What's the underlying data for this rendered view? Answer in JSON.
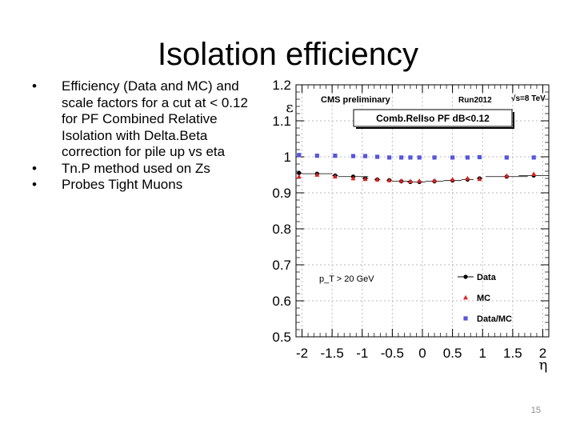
{
  "slide": {
    "title": "Isolation efficiency",
    "bullets": [
      "Efficiency (Data and MC) and scale factors for a cut at < 0.12 for PF Combined Relative Isolation with Delta.Beta correction for pile up vs eta",
      "Tn.P method used on Zs",
      "Probes Tight Muons"
    ],
    "bullet_glyph": "•",
    "page_number": "15"
  },
  "chart_data": {
    "type": "scatter",
    "header_left": "CMS preliminary",
    "header_mid": "Run2012",
    "header_right": "√s=8 TeV",
    "box_label": "Comb.RelIso PF dB<0.12",
    "pt_label": "p_T > 20 GeV",
    "ylabel": "ε",
    "xlabel": "η",
    "xlim": [
      -2.1,
      2.1
    ],
    "ylim": [
      0.5,
      1.2
    ],
    "x_ticks": [
      -2,
      -1.5,
      -1,
      -0.5,
      0,
      0.5,
      1,
      1.5,
      2
    ],
    "x_tick_labels": [
      "-2",
      "-1.5",
      "-1",
      "-0.5",
      "0",
      "0.5",
      "1",
      "1.5",
      "2"
    ],
    "y_ticks": [
      0.5,
      0.6,
      0.7,
      0.8,
      0.9,
      1.0,
      1.1,
      1.2
    ],
    "y_tick_labels": [
      "0.5",
      "0.6",
      "0.7",
      "0.8",
      "0.9",
      "1",
      "1.1",
      "1.2"
    ],
    "series": [
      {
        "name": "Data",
        "marker": "circle",
        "color": "#000000",
        "x": [
          -2.05,
          -1.75,
          -1.45,
          -1.15,
          -0.95,
          -0.75,
          -0.55,
          -0.35,
          -0.2,
          -0.05,
          0.2,
          0.5,
          0.75,
          0.95,
          1.4,
          1.85
        ],
        "y": [
          0.955,
          0.953,
          0.948,
          0.945,
          0.94,
          0.937,
          0.935,
          0.932,
          0.93,
          0.93,
          0.932,
          0.934,
          0.937,
          0.94,
          0.945,
          0.948
        ],
        "xerr": [
          0.05,
          0.25,
          0.05,
          0.25,
          0.05,
          0.05,
          0.05,
          0.15,
          0.05,
          0.1,
          0.15,
          0.15,
          0.1,
          0.05,
          0.35,
          0.25
        ]
      },
      {
        "name": "MC",
        "marker": "triangle",
        "color": "#dd2222",
        "x": [
          -2.05,
          -1.75,
          -1.45,
          -1.15,
          -0.95,
          -0.75,
          -0.55,
          -0.35,
          -0.2,
          -0.05,
          0.2,
          0.5,
          0.75,
          0.95,
          1.4,
          1.85
        ],
        "y": [
          0.945,
          0.95,
          0.945,
          0.94,
          0.938,
          0.937,
          0.935,
          0.933,
          0.932,
          0.933,
          0.934,
          0.937,
          0.94,
          0.938,
          0.947,
          0.952
        ],
        "xerr": [
          0.05,
          0.25,
          0.05,
          0.25,
          0.05,
          0.05,
          0.05,
          0.15,
          0.05,
          0.1,
          0.15,
          0.15,
          0.1,
          0.05,
          0.35,
          0.25
        ]
      },
      {
        "name": "Data/MC",
        "marker": "square",
        "color": "#5555dd",
        "x": [
          -2.05,
          -1.75,
          -1.45,
          -1.15,
          -0.95,
          -0.75,
          -0.55,
          -0.35,
          -0.2,
          -0.05,
          0.2,
          0.5,
          0.75,
          0.95,
          1.4,
          1.85
        ],
        "y": [
          1.005,
          1.003,
          1.003,
          1.002,
          1.002,
          1.0,
          0.998,
          0.998,
          0.998,
          0.998,
          0.998,
          0.998,
          0.998,
          0.999,
          0.998,
          0.998
        ],
        "xerr": [
          0.05,
          0.25,
          0.05,
          0.25,
          0.05,
          0.05,
          0.05,
          0.15,
          0.05,
          0.1,
          0.15,
          0.15,
          0.1,
          0.05,
          0.35,
          0.25
        ]
      }
    ],
    "legend": [
      "Data",
      "MC",
      "Data/MC"
    ],
    "legend_position": "bottom-right"
  }
}
